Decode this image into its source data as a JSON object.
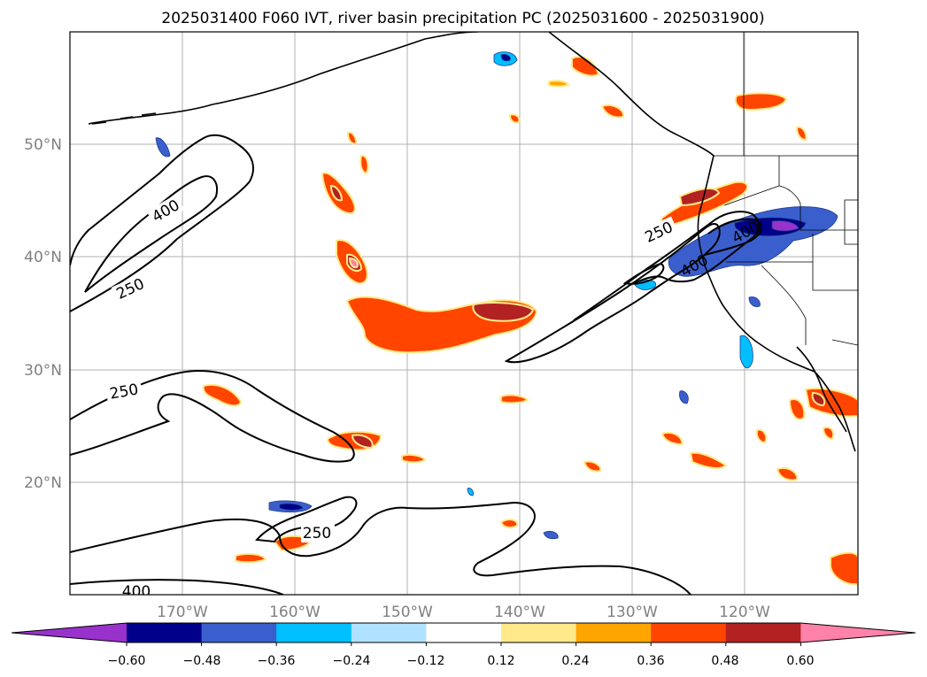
{
  "title": "2025031400 F060 IVT, river basin precipitation PC (2025031600 - 2025031900)",
  "map": {
    "lat_ticks": [
      "50°N",
      "40°N",
      "30°N",
      "20°N"
    ],
    "lon_ticks": [
      "170°W",
      "160°W",
      "150°W",
      "140°W",
      "130°W",
      "120°W"
    ],
    "contour_labels": [
      "400",
      "250",
      "250",
      "400",
      "250",
      "250",
      "400",
      "400"
    ],
    "gridlines": true
  },
  "colorbar": {
    "ticks": [
      "−0.60",
      "−0.48",
      "−0.36",
      "−0.24",
      "−0.12",
      "0.12",
      "0.24",
      "0.36",
      "0.48",
      "0.60"
    ],
    "colors": [
      "#9932cc",
      "#00008b",
      "#3a5fcd",
      "#00bfff",
      "#b0e2ff",
      "#ffffff",
      "#ffe98a",
      "#ffa500",
      "#ff4500",
      "#b22222",
      "#ff82ab"
    ]
  },
  "chart_data": {
    "type": "heatmap",
    "title": "2025031400 F060 IVT, river basin precipitation PC (2025031600 - 2025031900)",
    "x_range": [
      -178,
      -108
    ],
    "y_range": [
      10,
      60
    ],
    "contour_levels": [
      250,
      400
    ],
    "colorbar_levels": [
      -0.6,
      -0.48,
      -0.36,
      -0.24,
      -0.12,
      0.12,
      0.24,
      0.36,
      0.48,
      0.6
    ]
  }
}
